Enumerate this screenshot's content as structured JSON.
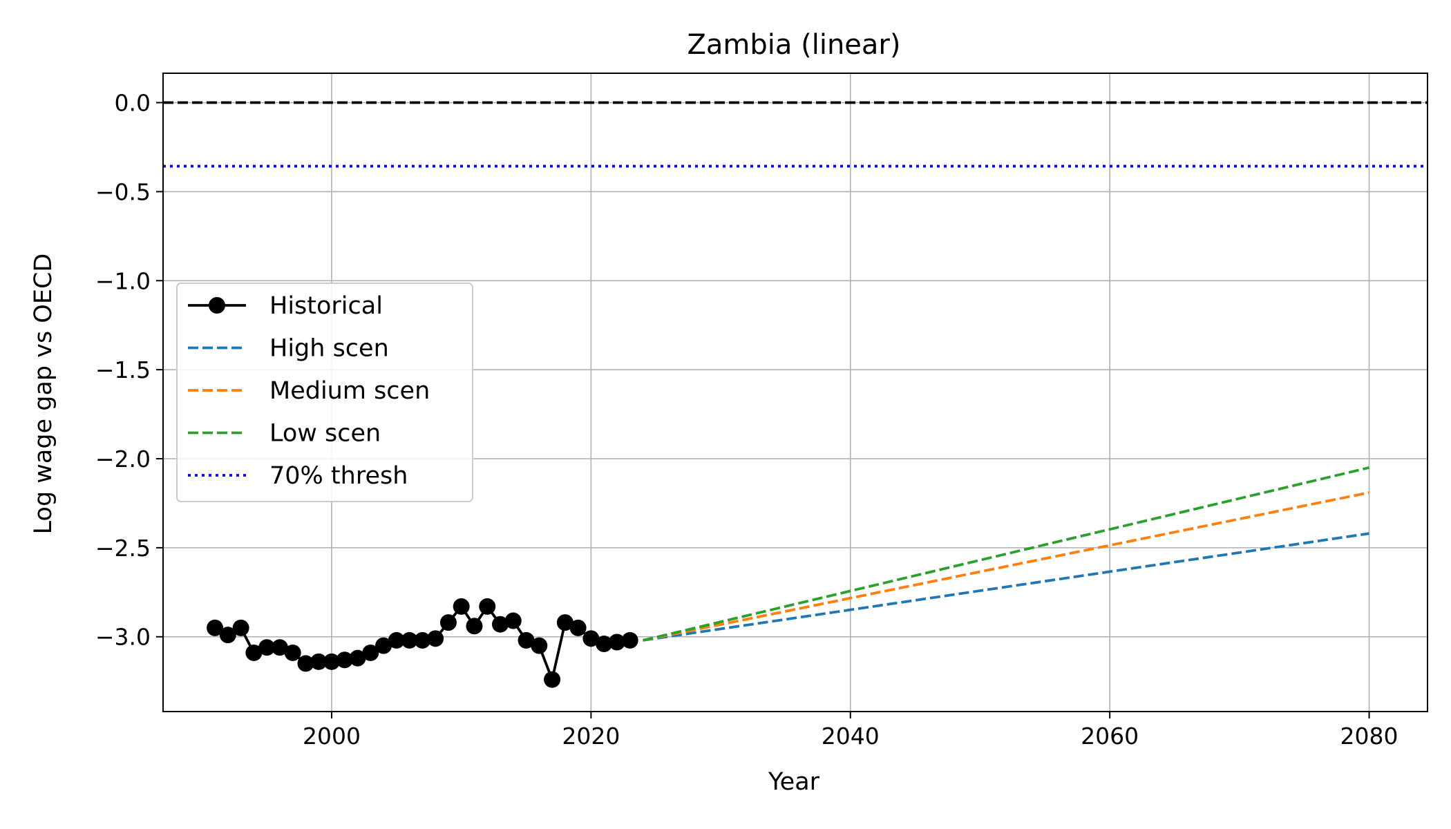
{
  "chart_data": {
    "type": "line",
    "title": "Zambia (linear)",
    "xlabel": "Year",
    "ylabel": "Log wage gap vs OECD",
    "xlim": [
      1987,
      2084.5
    ],
    "ylim": [
      -3.42,
      0.165
    ],
    "xticks": [
      {
        "value": 2000,
        "label": "2000"
      },
      {
        "value": 2020,
        "label": "2020"
      },
      {
        "value": 2040,
        "label": "2040"
      },
      {
        "value": 2060,
        "label": "2060"
      },
      {
        "value": 2080,
        "label": "2080"
      }
    ],
    "yticks": [
      {
        "value": 0,
        "label": "0.0"
      },
      {
        "value": -0.5,
        "label": "−0.5"
      },
      {
        "value": -1,
        "label": "−1.0"
      },
      {
        "value": -1.5,
        "label": "−1.5"
      },
      {
        "value": -2,
        "label": "−2.0"
      },
      {
        "value": -2.5,
        "label": "−2.5"
      },
      {
        "value": -3,
        "label": "−3.0"
      }
    ],
    "grid": true,
    "legend_position": "center-left",
    "series": [
      {
        "name": "Historical",
        "style": "solid-marker",
        "color": "#000000",
        "x": [
          1991,
          1992,
          1993,
          1994,
          1995,
          1996,
          1997,
          1998,
          1999,
          2000,
          2001,
          2002,
          2003,
          2004,
          2005,
          2006,
          2007,
          2008,
          2009,
          2010,
          2011,
          2012,
          2013,
          2014,
          2015,
          2016,
          2017,
          2018,
          2019,
          2020,
          2021,
          2022,
          2023
        ],
        "y": [
          -2.95,
          -2.99,
          -2.95,
          -3.09,
          -3.06,
          -3.06,
          -3.09,
          -3.15,
          -3.14,
          -3.14,
          -3.13,
          -3.12,
          -3.09,
          -3.05,
          -3.02,
          -3.02,
          -3.02,
          -3.01,
          -2.92,
          -2.83,
          -2.94,
          -2.83,
          -2.93,
          -2.91,
          -3.02,
          -3.05,
          -3.24,
          -2.92,
          -2.95,
          -3.01,
          -3.04,
          -3.03,
          -3.02
        ]
      },
      {
        "name": "High scen",
        "style": "dashed",
        "color": "#1f77b4",
        "x": [
          2024,
          2080
        ],
        "y": [
          -3.02,
          -2.42
        ]
      },
      {
        "name": "Medium scen",
        "style": "dashed",
        "color": "#ff7f0e",
        "x": [
          2024,
          2080
        ],
        "y": [
          -3.02,
          -2.19
        ]
      },
      {
        "name": "Low scen",
        "style": "dashed",
        "color": "#2ca02c",
        "x": [
          2024,
          2080
        ],
        "y": [
          -3.02,
          -2.05
        ]
      },
      {
        "name": "70% thresh",
        "style": "dotted",
        "color": "#0000ff",
        "x": [
          1987,
          2084.5
        ],
        "y": [
          -0.357,
          -0.357
        ]
      }
    ],
    "reference_lines": [
      {
        "y": 0,
        "style": "dashed",
        "color": "#000000"
      }
    ]
  }
}
